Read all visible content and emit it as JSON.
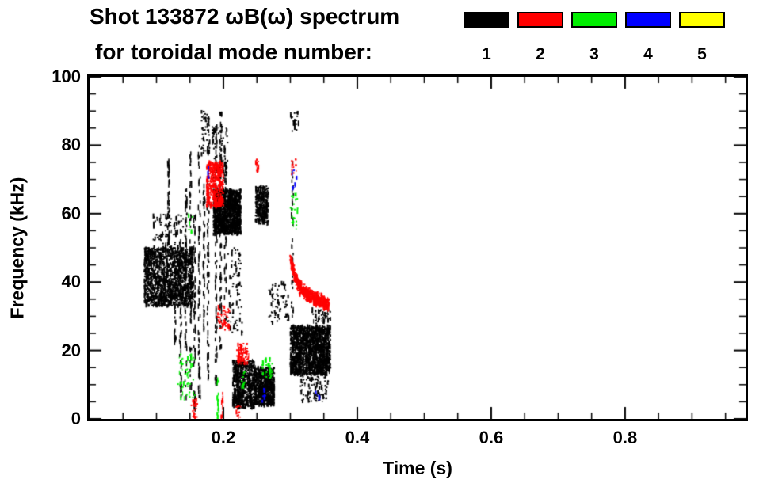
{
  "title": {
    "line1": "Shot 133872 ωB(ω) spectrum",
    "line2": "for toroidal mode number:"
  },
  "legend": {
    "modes": [
      {
        "label": "1",
        "color": "#000000"
      },
      {
        "label": "2",
        "color": "#ff0000"
      },
      {
        "label": "3",
        "color": "#00ee00"
      },
      {
        "label": "4",
        "color": "#0000ff"
      },
      {
        "label": "5",
        "color": "#ffff00"
      }
    ]
  },
  "chart_data": {
    "type": "scatter",
    "title": "Shot 133872 ωB(ω) spectrum for toroidal mode number: 1-5",
    "xlabel": "Time (s)",
    "ylabel": "Frequency (kHz)",
    "xlim": [
      0,
      0.98
    ],
    "ylim": [
      0,
      100
    ],
    "xticks": [
      0.2,
      0.4,
      0.6,
      0.8
    ],
    "yticks": [
      0,
      20,
      40,
      60,
      80,
      100
    ],
    "x_minor_step": 0.05,
    "y_minor_step": 5,
    "grid": false,
    "legend_position": "top-right",
    "series": [
      {
        "name": "n=1",
        "color": "#000000",
        "clusters": [
          {
            "kind": "blob",
            "t": [
              0.082,
              0.155
            ],
            "f": [
              33,
              50
            ],
            "n": 1500
          },
          {
            "kind": "blob",
            "t": [
              0.095,
              0.14
            ],
            "f": [
              48,
              60
            ],
            "n": 100
          },
          {
            "kind": "vline",
            "t": 0.118,
            "f": [
              50,
              76
            ],
            "n": 50
          },
          {
            "kind": "vline",
            "t": 0.128,
            "f": [
              20,
              45
            ],
            "n": 30
          },
          {
            "kind": "vline",
            "t": 0.136,
            "f": [
              5,
              56
            ],
            "n": 60
          },
          {
            "kind": "vline",
            "t": 0.144,
            "f": [
              3,
              68
            ],
            "n": 70
          },
          {
            "kind": "vline",
            "t": 0.151,
            "f": [
              8,
              78
            ],
            "n": 60
          },
          {
            "kind": "vline",
            "t": 0.157,
            "f": [
              0,
              60
            ],
            "n": 55
          },
          {
            "kind": "vline",
            "t": 0.164,
            "f": [
              5,
              83
            ],
            "n": 70
          },
          {
            "kind": "vline",
            "t": 0.171,
            "f": [
              25,
              70
            ],
            "n": 45
          },
          {
            "kind": "vline",
            "t": 0.177,
            "f": [
              8,
              88
            ],
            "n": 80
          },
          {
            "kind": "blob",
            "t": [
              0.167,
              0.18
            ],
            "f": [
              77,
              90
            ],
            "n": 50
          },
          {
            "kind": "blob",
            "t": [
              0.185,
              0.226
            ],
            "f": [
              54,
              67
            ],
            "n": 1400
          },
          {
            "kind": "vline",
            "t": 0.189,
            "f": [
              10,
              92
            ],
            "n": 80
          },
          {
            "kind": "vline",
            "t": 0.196,
            "f": [
              20,
              90
            ],
            "n": 70
          },
          {
            "kind": "vline",
            "t": 0.203,
            "f": [
              25,
              80
            ],
            "n": 55
          },
          {
            "kind": "blob",
            "t": [
              0.183,
              0.207
            ],
            "f": [
              70,
              86
            ],
            "n": 90
          },
          {
            "kind": "blob",
            "t": [
              0.206,
              0.228
            ],
            "f": [
              25,
              50
            ],
            "n": 80
          },
          {
            "kind": "blob",
            "t": [
              0.214,
              0.246
            ],
            "f": [
              3,
              17
            ],
            "n": 650
          },
          {
            "kind": "blob",
            "t": [
              0.246,
              0.276
            ],
            "f": [
              4,
              15
            ],
            "n": 750
          },
          {
            "kind": "blob",
            "t": [
              0.248,
              0.267
            ],
            "f": [
              57,
              68
            ],
            "n": 320
          },
          {
            "kind": "blob",
            "t": [
              0.268,
              0.298
            ],
            "f": [
              28,
              40
            ],
            "n": 70
          },
          {
            "kind": "vline",
            "t": 0.303,
            "f": [
              30,
              75
            ],
            "n": 35
          },
          {
            "kind": "blob",
            "t": [
              0.3,
              0.36
            ],
            "f": [
              13,
              27
            ],
            "n": 1700
          },
          {
            "kind": "blob",
            "t": [
              0.315,
              0.357
            ],
            "f": [
              5,
              13
            ],
            "n": 110
          },
          {
            "kind": "blob",
            "t": [
              0.3,
              0.313
            ],
            "f": [
              84,
              90
            ],
            "n": 22
          },
          {
            "kind": "blob",
            "t": [
              0.332,
              0.36
            ],
            "f": [
              27,
              32
            ],
            "n": 50
          }
        ]
      },
      {
        "name": "n=2",
        "color": "#ff0000",
        "clusters": [
          {
            "kind": "blob",
            "t": [
              0.175,
              0.2
            ],
            "f": [
              62,
              75
            ],
            "n": 450
          },
          {
            "kind": "blob",
            "t": [
              0.19,
              0.21
            ],
            "f": [
              26,
              33
            ],
            "n": 55
          },
          {
            "kind": "blob",
            "t": [
              0.22,
              0.238
            ],
            "f": [
              16,
              22
            ],
            "n": 80
          },
          {
            "kind": "blob",
            "t": [
              0.248,
              0.254
            ],
            "f": [
              72,
              76
            ],
            "n": 14
          },
          {
            "kind": "blob",
            "t": [
              0.302,
              0.309
            ],
            "f": [
              70,
              76
            ],
            "n": 14
          },
          {
            "kind": "curve",
            "pts": [
              [
                0.3,
                47
              ],
              [
                0.306,
                42
              ],
              [
                0.314,
                38.5
              ],
              [
                0.325,
                36.5
              ],
              [
                0.34,
                35
              ],
              [
                0.358,
                33.5
              ]
            ],
            "spread": 2.2,
            "n": 650
          },
          {
            "kind": "blob",
            "t": [
              0.152,
              0.161
            ],
            "f": [
              0,
              6
            ],
            "n": 28
          },
          {
            "kind": "blob",
            "t": [
              0.218,
              0.226
            ],
            "f": [
              0,
              4
            ],
            "n": 14
          },
          {
            "kind": "vline",
            "t": 0.198,
            "f": [
              0,
              8
            ],
            "n": 12
          }
        ]
      },
      {
        "name": "n=3",
        "color": "#00ee00",
        "clusters": [
          {
            "kind": "blob",
            "t": [
              0.132,
              0.158
            ],
            "f": [
              6,
              19
            ],
            "n": 55
          },
          {
            "kind": "vline",
            "t": 0.192,
            "f": [
              0,
              12
            ],
            "n": 22
          },
          {
            "kind": "blob",
            "t": [
              0.258,
              0.273
            ],
            "f": [
              12,
              18
            ],
            "n": 35
          },
          {
            "kind": "blob",
            "t": [
              0.3,
              0.311
            ],
            "f": [
              55,
              66
            ],
            "n": 26
          },
          {
            "kind": "blob",
            "t": [
              0.225,
              0.233
            ],
            "f": [
              9,
              14
            ],
            "n": 12
          },
          {
            "kind": "blob",
            "t": [
              0.148,
              0.156
            ],
            "f": [
              54,
              60
            ],
            "n": 8
          }
        ]
      },
      {
        "name": "n=4",
        "color": "#0000ff",
        "clusters": [
          {
            "kind": "blob",
            "t": [
              0.303,
              0.31
            ],
            "f": [
              67,
              73
            ],
            "n": 9
          },
          {
            "kind": "blob",
            "t": [
              0.258,
              0.264
            ],
            "f": [
              5,
              9
            ],
            "n": 7
          },
          {
            "kind": "blob",
            "t": [
              0.338,
              0.345
            ],
            "f": [
              6,
              10
            ],
            "n": 7
          },
          {
            "kind": "vline",
            "t": 0.177,
            "f": [
              70,
              75
            ],
            "n": 5
          }
        ]
      },
      {
        "name": "n=5",
        "color": "#ffff00",
        "clusters": []
      }
    ]
  }
}
